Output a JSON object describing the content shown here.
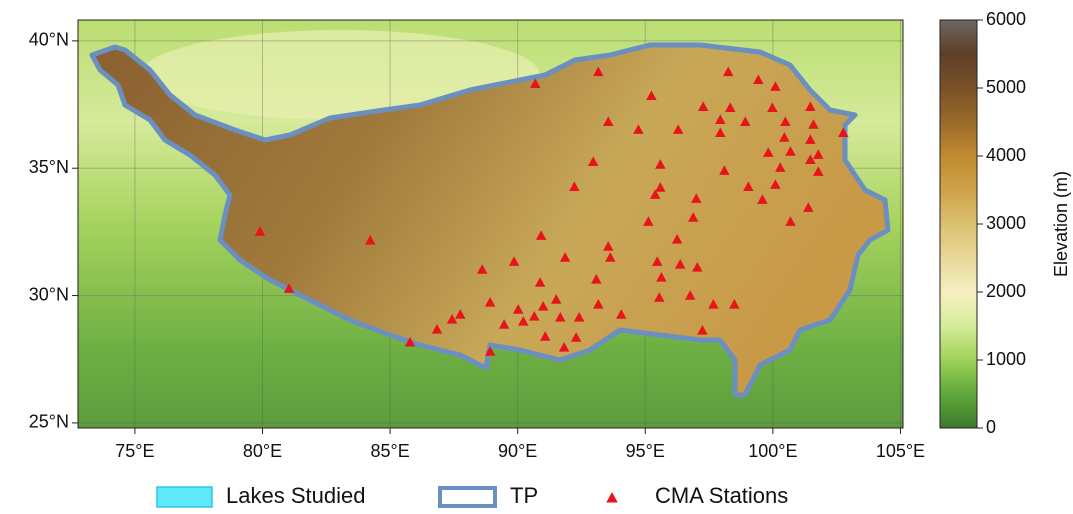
{
  "chart_data": {
    "type": "map",
    "xlim": [
      72.77,
      105.1
    ],
    "ylim": [
      24.8,
      40.82
    ],
    "xticks": [
      {
        "value": 75,
        "label": "75°E"
      },
      {
        "value": 80,
        "label": "80°E"
      },
      {
        "value": 85,
        "label": "85°E"
      },
      {
        "value": 90,
        "label": "90°E"
      },
      {
        "value": 95,
        "label": "95°E"
      },
      {
        "value": 100,
        "label": "100°E"
      },
      {
        "value": 105,
        "label": "105°E"
      }
    ],
    "yticks": [
      {
        "value": 25,
        "label": "25°N"
      },
      {
        "value": 30,
        "label": "30°N"
      },
      {
        "value": 35,
        "label": "35°N"
      },
      {
        "value": 40,
        "label": "40°N"
      }
    ],
    "grid": true,
    "colorbar": {
      "label": "Elevation (m)",
      "lim": [
        0,
        6000
      ],
      "ticks": [
        0,
        1000,
        2000,
        3000,
        4000,
        5000,
        6000
      ]
    },
    "series": [
      {
        "name": "Lakes Studied",
        "color": "#5ee8f8"
      },
      {
        "name": "TP",
        "color": "#6a8fc0"
      },
      {
        "name": "CMA Stations",
        "color": "#e8141c",
        "x": [
          90.69,
          93.16,
          95.24,
          98.25,
          99.43,
          100.1,
          98.33,
          97.27,
          99.98,
          101.47,
          93.55,
          94.73,
          96.29,
          97.94,
          98.92,
          97.94,
          100.49,
          101.59,
          102.76,
          100.45,
          101.47,
          99.82,
          100.69,
          101.78,
          101.47,
          92.96,
          95.59,
          95.59,
          98.1,
          100.29,
          101.78,
          95.39,
          97.0,
          100.1,
          99.04,
          99.59,
          92.22,
          95.12,
          96.88,
          101.39,
          100.69,
          79.9,
          84.22,
          90.92,
          96.25,
          93.55,
          93.63,
          91.86,
          89.86,
          88.61,
          95.47,
          96.37,
          97.04,
          93.08,
          95.63,
          90.88,
          81.04,
          95.55,
          96.76,
          97.67,
          98.49,
          88.92,
          90.02,
          91.0,
          91.51,
          87.75,
          93.16,
          87.43,
          89.47,
          90.22,
          90.65,
          91.67,
          92.41,
          94.06,
          86.84,
          91.08,
          92.29,
          97.24,
          85.78,
          91.82,
          88.92
        ],
        "y": [
          38.31,
          38.78,
          37.84,
          38.78,
          38.47,
          38.2,
          37.37,
          37.41,
          37.37,
          37.41,
          36.82,
          36.51,
          36.51,
          36.39,
          36.82,
          36.9,
          36.82,
          36.71,
          36.39,
          36.2,
          36.12,
          35.61,
          35.65,
          35.53,
          35.33,
          35.25,
          35.14,
          34.24,
          34.9,
          35.02,
          34.86,
          33.96,
          33.8,
          34.35,
          34.27,
          33.76,
          34.27,
          32.9,
          33.06,
          33.45,
          32.9,
          32.51,
          32.16,
          32.35,
          32.2,
          31.92,
          31.49,
          31.49,
          31.33,
          31.02,
          31.33,
          31.22,
          31.1,
          30.63,
          30.71,
          30.51,
          30.27,
          29.92,
          30.0,
          29.65,
          29.65,
          29.73,
          29.45,
          29.57,
          29.84,
          29.25,
          29.65,
          29.06,
          28.86,
          28.98,
          29.18,
          29.14,
          29.14,
          29.25,
          28.67,
          28.39,
          28.35,
          28.63,
          28.16,
          27.96,
          27.8
        ]
      }
    ]
  }
}
